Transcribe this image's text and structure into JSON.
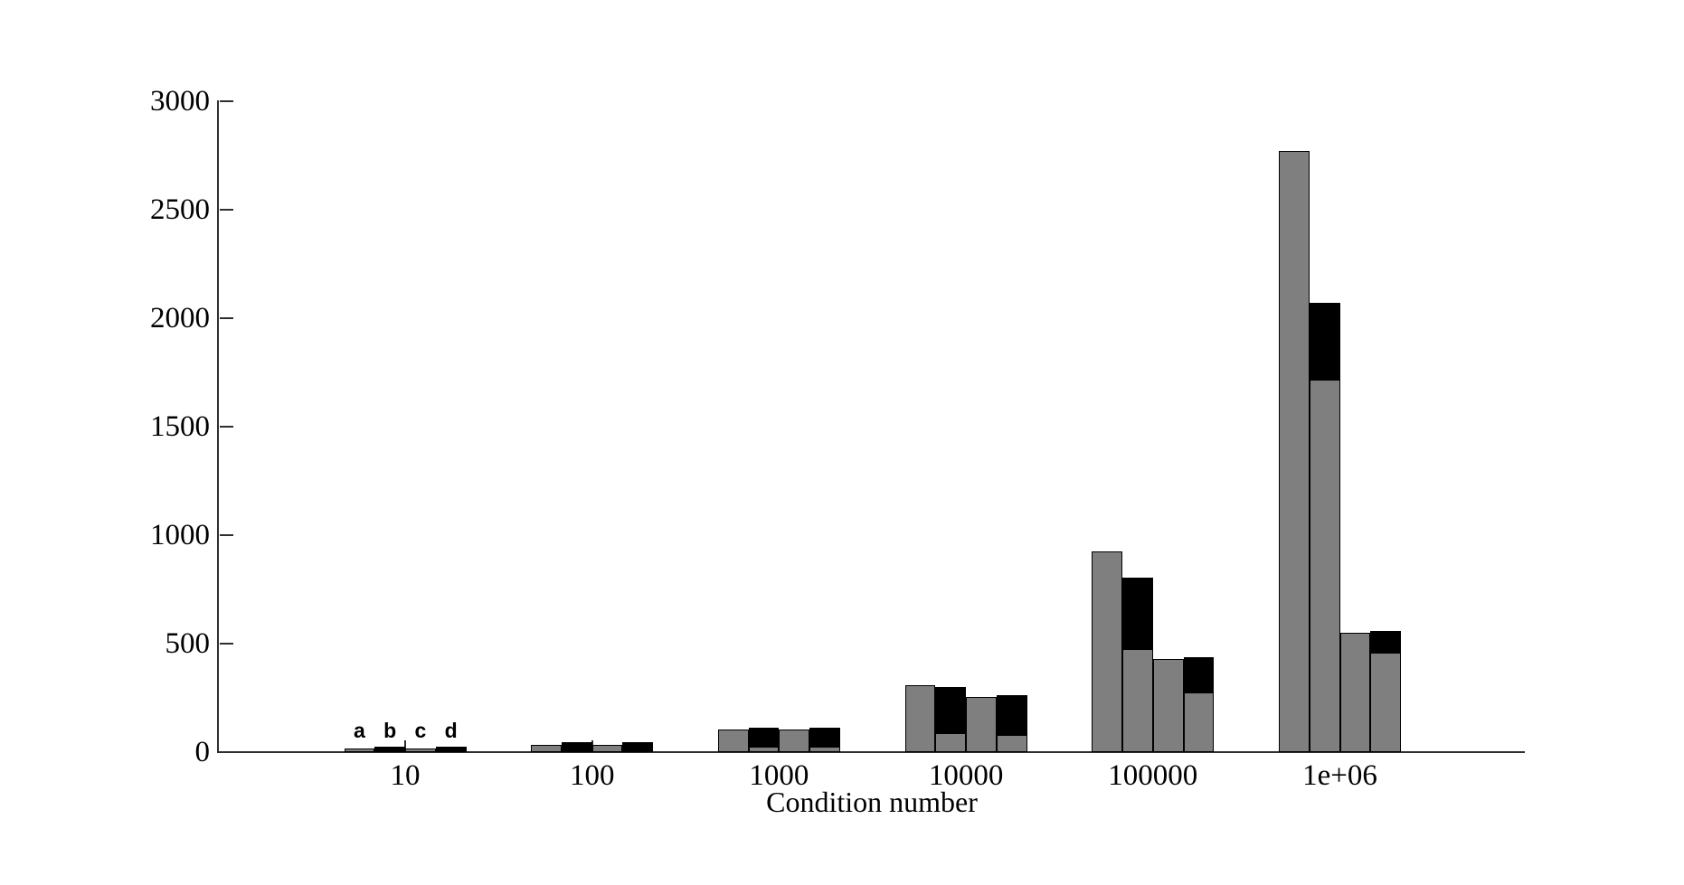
{
  "chart_data": {
    "type": "bar",
    "title": "",
    "xlabel": "Condition number",
    "ylabel": "",
    "x_tick_labels": [
      "10",
      "100",
      "1000",
      "10000",
      "100000",
      "1e+06"
    ],
    "y_ticks": [
      0,
      500,
      1000,
      1500,
      2000,
      2500,
      3000
    ],
    "ylim": [
      0,
      3000
    ],
    "grid": false,
    "legend_position": "none",
    "bar_letter_labels": [
      "a",
      "b",
      "c",
      "d"
    ],
    "letters_group_index": 0,
    "groups": [
      {
        "category": "10",
        "bars": [
          {
            "label": "a",
            "total": 15,
            "gray": 15,
            "black": 0
          },
          {
            "label": "b",
            "total": 25,
            "gray": 0,
            "black": 25
          },
          {
            "label": "c",
            "total": 15,
            "gray": 15,
            "black": 0
          },
          {
            "label": "d",
            "total": 25,
            "gray": 0,
            "black": 25
          }
        ]
      },
      {
        "category": "100",
        "bars": [
          {
            "label": "a",
            "total": 35,
            "gray": 35,
            "black": 0
          },
          {
            "label": "b",
            "total": 45,
            "gray": 0,
            "black": 45
          },
          {
            "label": "c",
            "total": 35,
            "gray": 35,
            "black": 0
          },
          {
            "label": "d",
            "total": 45,
            "gray": 0,
            "black": 45
          }
        ]
      },
      {
        "category": "1000",
        "bars": [
          {
            "label": "a",
            "total": 103,
            "gray": 103,
            "black": 0
          },
          {
            "label": "b",
            "total": 113,
            "gray": 23,
            "black": 90
          },
          {
            "label": "c",
            "total": 103,
            "gray": 103,
            "black": 0
          },
          {
            "label": "d",
            "total": 113,
            "gray": 23,
            "black": 90
          }
        ]
      },
      {
        "category": "10000",
        "bars": [
          {
            "label": "a",
            "total": 310,
            "gray": 310,
            "black": 0
          },
          {
            "label": "b",
            "total": 300,
            "gray": 88,
            "black": 212
          },
          {
            "label": "c",
            "total": 255,
            "gray": 255,
            "black": 0
          },
          {
            "label": "d",
            "total": 263,
            "gray": 80,
            "black": 183
          }
        ]
      },
      {
        "category": "100000",
        "bars": [
          {
            "label": "a",
            "total": 925,
            "gray": 925,
            "black": 0
          },
          {
            "label": "b",
            "total": 805,
            "gray": 474,
            "black": 331
          },
          {
            "label": "c",
            "total": 430,
            "gray": 430,
            "black": 0
          },
          {
            "label": "d",
            "total": 437,
            "gray": 274,
            "black": 163
          }
        ]
      },
      {
        "category": "1e+06",
        "bars": [
          {
            "label": "a",
            "total": 2770,
            "gray": 2770,
            "black": 0
          },
          {
            "label": "b",
            "total": 2070,
            "gray": 1717,
            "black": 353
          },
          {
            "label": "c",
            "total": 551,
            "gray": 551,
            "black": 0
          },
          {
            "label": "d",
            "total": 560,
            "gray": 460,
            "black": 100
          }
        ]
      }
    ],
    "colors": {
      "bar_gray": "#7f7f7f",
      "bar_black": "#000000",
      "axis": "#2e2e2e",
      "background": "#ffffff"
    }
  }
}
